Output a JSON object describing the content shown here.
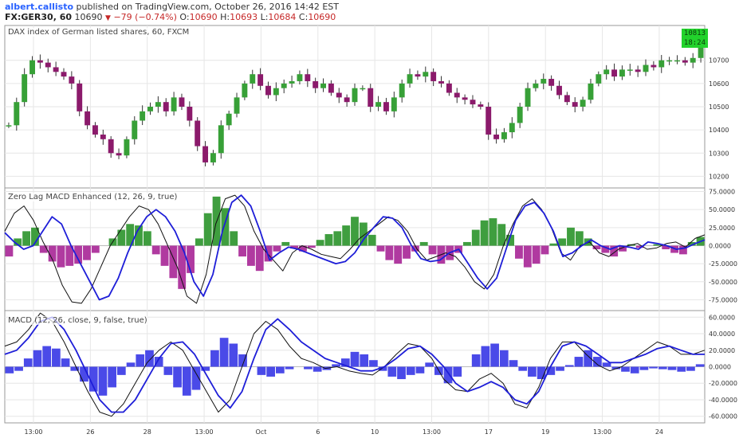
{
  "header": {
    "author": "albert.callisto",
    "published": "published on TradingView.com, October 26, 2016 14:42 EST",
    "symbol": "FX:GER30, 60",
    "last": "10690",
    "change": "−79 (−0.74%)",
    "open_label": "O:",
    "open": "10690",
    "high_label": "H:",
    "high": "10693",
    "low_label": "L:",
    "low": "10684",
    "close_label": "C:",
    "close": "10690"
  },
  "price_badge": {
    "price": "10813",
    "time": "18:24"
  },
  "colors": {
    "up": "#37a037",
    "down": "#8b1a6b",
    "wick": "#333333",
    "hist_pos": "#3f9e3f",
    "hist_neg": "#b03aa0",
    "macd_hist": "#4a4ae8",
    "signal": "#1e1ed8",
    "macd": "#111111",
    "grid": "#e6e6e6",
    "badge": "#22d22c"
  },
  "chart_data": [
    {
      "type": "candlestick",
      "title": "DAX index of German listed shares, 60, FXCM",
      "ylim": [
        10150,
        10850
      ],
      "yticks": [
        "10700",
        "10600",
        "10500",
        "10400",
        "10300",
        "10200"
      ],
      "close_path": [
        10420,
        10520,
        10640,
        10700,
        10690,
        10670,
        10650,
        10630,
        10600,
        10480,
        10420,
        10380,
        10360,
        10300,
        10290,
        10360,
        10440,
        10480,
        10500,
        10520,
        10480,
        10540,
        10500,
        10440,
        10330,
        10260,
        10300,
        10420,
        10470,
        10540,
        10600,
        10640,
        10590,
        10550,
        10580,
        10600,
        10610,
        10640,
        10610,
        10580,
        10600,
        10560,
        10540,
        10520,
        10580,
        10580,
        10500,
        10520,
        10480,
        10540,
        10600,
        10640,
        10630,
        10650,
        10610,
        10600,
        10560,
        10540,
        10530,
        10510,
        10500,
        10380,
        10360,
        10390,
        10430,
        10500,
        10580,
        10600,
        10620,
        10590,
        10550,
        10520,
        10500,
        10530,
        10600,
        10640,
        10660,
        10630,
        10660,
        10660,
        10650,
        10680,
        10670,
        10700,
        10700,
        10700,
        10690,
        10710,
        10760
      ]
    },
    {
      "type": "histogram+line",
      "title": "Zero Lag MACD Enhanced (12, 26, 9, true)",
      "ylim": [
        -90,
        80
      ],
      "yticks": [
        "75.0000",
        "50.0000",
        "25.0000",
        "0.0000",
        "-25.0000",
        "-50.0000",
        "-75.0000"
      ],
      "hist": [
        -15,
        10,
        20,
        25,
        -10,
        -22,
        -30,
        -28,
        -25,
        -20,
        -10,
        0,
        10,
        22,
        30,
        28,
        20,
        -12,
        -28,
        -45,
        -60,
        -38,
        10,
        45,
        68,
        52,
        20,
        -15,
        -28,
        -35,
        -22,
        -8,
        5,
        -4,
        -8,
        -3,
        8,
        16,
        20,
        28,
        40,
        32,
        15,
        -8,
        -20,
        -25,
        -18,
        -8,
        5,
        -12,
        -25,
        -20,
        -10,
        5,
        22,
        35,
        38,
        30,
        15,
        -18,
        -30,
        -25,
        -12,
        3,
        10,
        25,
        20,
        10,
        -5,
        -10,
        -15,
        -8,
        2,
        -3,
        0,
        2,
        -5,
        -10,
        -12,
        5,
        12
      ],
      "macd_line": [
        20,
        45,
        55,
        35,
        5,
        -20,
        -55,
        -78,
        -80,
        -60,
        -30,
        0,
        20,
        40,
        55,
        50,
        30,
        0,
        -30,
        -70,
        -80,
        -40,
        30,
        65,
        70,
        55,
        20,
        -5,
        -20,
        -35,
        -10,
        0,
        -5,
        -12,
        -15,
        -18,
        -5,
        10,
        20,
        30,
        40,
        35,
        20,
        -5,
        -20,
        -15,
        -10,
        -15,
        -30,
        -50,
        -60,
        -40,
        0,
        30,
        55,
        65,
        50,
        25,
        -10,
        -20,
        0,
        5,
        -10,
        -15,
        -5,
        0,
        3,
        -5,
        -3,
        3,
        5,
        -2,
        10,
        15
      ],
      "signal_line": [
        18,
        5,
        -5,
        0,
        20,
        40,
        30,
        0,
        -25,
        -50,
        -75,
        -70,
        -45,
        -10,
        20,
        40,
        50,
        40,
        20,
        -10,
        -50,
        -70,
        -40,
        20,
        60,
        70,
        55,
        20,
        -20,
        -10,
        -2,
        -5,
        -10,
        -15,
        -20,
        -25,
        -22,
        -10,
        10,
        25,
        40,
        38,
        25,
        0,
        -18,
        -22,
        -20,
        -10,
        -5,
        -25,
        -45,
        -60,
        -45,
        -5,
        35,
        55,
        60,
        45,
        20,
        -15,
        -10,
        0,
        8,
        0,
        -5,
        0,
        -2,
        -5,
        5,
        3,
        0,
        -5,
        -3,
        3,
        8
      ]
    },
    {
      "type": "histogram+line",
      "title": "MACD (12, 26, close, 9, false, true)",
      "ylim": [
        -68,
        68
      ],
      "yticks": [
        "60.0000",
        "40.0000",
        "20.0000",
        "0.0000",
        "-20.0000",
        "-40.0000",
        "-60.0000"
      ],
      "hist": [
        -8,
        -5,
        10,
        20,
        25,
        22,
        10,
        -5,
        -18,
        -30,
        -35,
        -25,
        -10,
        5,
        15,
        20,
        12,
        -10,
        -25,
        -35,
        -28,
        -5,
        20,
        35,
        28,
        15,
        0,
        -10,
        -12,
        -8,
        -3,
        0,
        -3,
        -6,
        -4,
        3,
        10,
        18,
        15,
        8,
        -5,
        -12,
        -15,
        -10,
        -8,
        5,
        -10,
        -20,
        -12,
        0,
        15,
        25,
        28,
        20,
        8,
        -5,
        -12,
        -15,
        -10,
        -5,
        2,
        12,
        20,
        12,
        5,
        -3,
        -6,
        -8,
        -4,
        -2,
        -3,
        -4,
        -6,
        -5,
        3
      ],
      "macd_line": [
        25,
        30,
        45,
        65,
        55,
        30,
        0,
        -30,
        -55,
        -60,
        -45,
        -20,
        5,
        20,
        30,
        20,
        -5,
        -30,
        -55,
        -40,
        0,
        40,
        55,
        45,
        25,
        10,
        5,
        -2,
        0,
        -5,
        -8,
        -10,
        0,
        15,
        28,
        25,
        10,
        -15,
        -28,
        -30,
        -15,
        -8,
        -20,
        -45,
        -50,
        -25,
        10,
        30,
        30,
        15,
        2,
        -5,
        0,
        10,
        20,
        30,
        25,
        15,
        15,
        20
      ],
      "signal_line": [
        15,
        20,
        35,
        55,
        60,
        45,
        20,
        -10,
        -40,
        -55,
        -55,
        -40,
        -15,
        10,
        28,
        30,
        15,
        -10,
        -35,
        -50,
        -30,
        10,
        45,
        58,
        45,
        30,
        20,
        10,
        5,
        0,
        -5,
        -5,
        0,
        10,
        22,
        25,
        15,
        0,
        -20,
        -30,
        -25,
        -18,
        -25,
        -40,
        -45,
        -30,
        0,
        25,
        30,
        25,
        15,
        5,
        5,
        10,
        15,
        22,
        25,
        20,
        15,
        15
      ]
    }
  ],
  "x_axis": {
    "labels": [
      "13:00",
      "26",
      "28",
      "13:00",
      "Oct",
      "6",
      "10",
      "13:00",
      "17",
      "19",
      "13:00",
      "24"
    ]
  }
}
